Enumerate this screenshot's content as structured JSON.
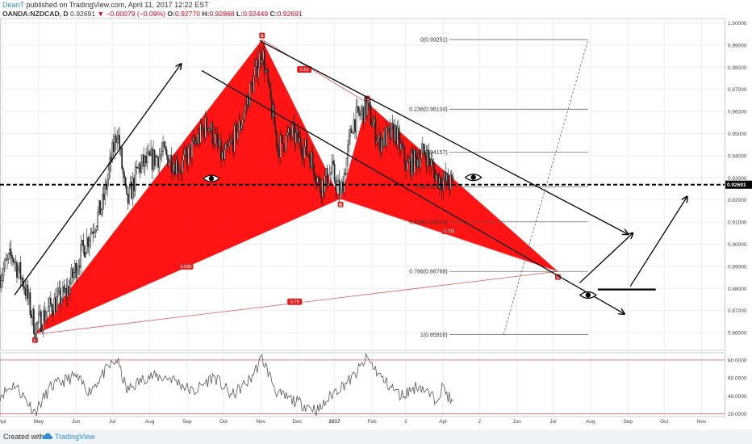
{
  "header": {
    "author": "DeanT",
    "published_text": "published on TradingView.com, April 11, 2017 12:22 EST",
    "symbol": "OANDA:NZDCAD, D",
    "last": "0.92691",
    "change": "−0.00079 (−0.09%)",
    "o_label": "O:",
    "o_value": "0.92770",
    "h_label": "H:",
    "h_value": "0.92868",
    "l_label": "L:",
    "l_value": "0.92449",
    "c_label": "C:",
    "c_value": "0.92691"
  },
  "footer": {
    "created_with": "Created with",
    "brand": "TradingView"
  },
  "colors": {
    "pattern_fill": "#ff0000",
    "candle": "#222222",
    "grid": "#e9eef2",
    "price_tag_bg": "#000000",
    "rsi_line": "#555555",
    "rsi_band": "#e03030"
  },
  "chart_data": {
    "type": "candlestick",
    "symbol": "OANDA:NZDCAD, D",
    "x_ticks": [
      {
        "label": "Apr",
        "day": 0
      },
      {
        "label": "May",
        "day": 30
      },
      {
        "label": "Jun",
        "day": 61
      },
      {
        "label": "Jul",
        "day": 91
      },
      {
        "label": "Aug",
        "day": 122
      },
      {
        "label": "Sep",
        "day": 153
      },
      {
        "label": "Oct",
        "day": 183
      },
      {
        "label": "Nov",
        "day": 214
      },
      {
        "label": "Dec",
        "day": 244
      },
      {
        "label": "2017",
        "day": 275
      },
      {
        "label": "Feb",
        "day": 306
      },
      {
        "label": "2",
        "day": 334
      },
      {
        "label": "Apr",
        "day": 365
      },
      {
        "label": "2",
        "day": 395
      },
      {
        "label": "Jun",
        "day": 426
      },
      {
        "label": "Jul",
        "day": 456
      },
      {
        "label": "Aug",
        "day": 487
      },
      {
        "label": "Sep",
        "day": 518
      },
      {
        "label": "Oct",
        "day": 548
      },
      {
        "label": "Nov",
        "day": 579
      }
    ],
    "y_ticks": [
      "1.00000",
      "0.99000",
      "0.98000",
      "0.97000",
      "0.96000",
      "0.95000",
      "0.94000",
      "0.93000",
      "0.92000",
      "0.91000",
      "0.90000",
      "0.89000",
      "0.88000",
      "0.87000",
      "0.86000"
    ],
    "y_range": [
      0.852,
      1.002
    ],
    "x_range_days": [
      -2,
      598
    ],
    "current_price": "0.92691",
    "price_anchors": [
      {
        "day": -3,
        "price": 0.885
      },
      {
        "day": 8,
        "price": 0.895
      },
      {
        "day": 18,
        "price": 0.882
      },
      {
        "day": 27,
        "price": 0.862
      },
      {
        "day": 40,
        "price": 0.872
      },
      {
        "day": 53,
        "price": 0.878
      },
      {
        "day": 63,
        "price": 0.893
      },
      {
        "day": 83,
        "price": 0.918
      },
      {
        "day": 95,
        "price": 0.952
      },
      {
        "day": 103,
        "price": 0.918
      },
      {
        "day": 113,
        "price": 0.935
      },
      {
        "day": 133,
        "price": 0.941
      },
      {
        "day": 148,
        "price": 0.935
      },
      {
        "day": 170,
        "price": 0.955
      },
      {
        "day": 183,
        "price": 0.938
      },
      {
        "day": 197,
        "price": 0.954
      },
      {
        "day": 215,
        "price": 0.988
      },
      {
        "day": 228,
        "price": 0.944
      },
      {
        "day": 240,
        "price": 0.95
      },
      {
        "day": 255,
        "price": 0.94
      },
      {
        "day": 263,
        "price": 0.926
      },
      {
        "day": 273,
        "price": 0.933
      },
      {
        "day": 280,
        "price": 0.922
      },
      {
        "day": 290,
        "price": 0.955
      },
      {
        "day": 302,
        "price": 0.962
      },
      {
        "day": 312,
        "price": 0.946
      },
      {
        "day": 325,
        "price": 0.951
      },
      {
        "day": 335,
        "price": 0.935
      },
      {
        "day": 350,
        "price": 0.942
      },
      {
        "day": 360,
        "price": 0.93
      },
      {
        "day": 373,
        "price": 0.927
      }
    ],
    "candle_range": [
      -2,
      373
    ],
    "pattern_points": [
      {
        "label": "X",
        "day": 27,
        "price": 0.8592
      },
      {
        "label": "A",
        "day": 215,
        "price": 0.9925
      },
      {
        "label": "B",
        "day": 280,
        "price": 0.9205
      },
      {
        "label": "C",
        "day": 302,
        "price": 0.964
      },
      {
        "label": "D",
        "day": 460,
        "price": 0.8877
      }
    ],
    "pattern_ratios": [
      {
        "value": "0.62",
        "day": 250,
        "price": 0.979
      },
      {
        "value": "0.568",
        "day": 152,
        "price": 0.89
      },
      {
        "value": "1.711",
        "day": 370,
        "price": 0.906
      },
      {
        "value": "0.79",
        "day": 242,
        "price": 0.874
      }
    ],
    "fib_levels": [
      {
        "label": "0(0.99251)",
        "price": 0.99251
      },
      {
        "label": "0.236(0.96104)",
        "price": 0.96104
      },
      {
        "label": "0.382(0.94157)",
        "price": 0.94157
      },
      {
        "label": "0.5(0.92583)",
        "price": 0.92583
      },
      {
        "label": "0.618(0.91010)",
        "price": 0.9101
      },
      {
        "label": "0.786(0.88769)",
        "price": 0.88769
      },
      {
        "label": "1(0.85916)",
        "price": 0.85916
      }
    ],
    "fib_x_days": [
      370,
      485
    ],
    "fib_diagonal": [
      {
        "day": 415,
        "price": 0.8592
      },
      {
        "day": 485,
        "price": 0.9925
      }
    ],
    "trend_lines": [
      {
        "from": {
          "day": 10,
          "price": 0.877
        },
        "to": {
          "day": 148,
          "price": 0.9815
        },
        "arrow": true
      },
      {
        "from": {
          "day": 213,
          "price": 0.992
        },
        "to": {
          "day": 518,
          "price": 0.9045
        },
        "arrow": true
      },
      {
        "from": {
          "day": 165,
          "price": 0.9785
        },
        "to": {
          "day": 515,
          "price": 0.8685
        },
        "arrow": true
      },
      {
        "from": {
          "day": 478,
          "price": 0.8825
        },
        "to": {
          "day": 522,
          "price": 0.905
        },
        "arrow": true
      },
      {
        "from": {
          "day": 520,
          "price": 0.881
        },
        "to": {
          "day": 567,
          "price": 0.9215
        },
        "arrow": true
      }
    ],
    "level_lines": [
      {
        "price": 0.8795,
        "from_day": 493,
        "to_day": 541
      }
    ],
    "eye_markers": [
      {
        "day": 390,
        "price": 0.9302
      },
      {
        "day": 173,
        "price": 0.9297
      },
      {
        "day": 485,
        "price": 0.877
      }
    ],
    "eye_markers_note": "",
    "rsi": {
      "y_ticks": [
        "80.0000",
        "60.0000",
        "40.0000",
        "20.0000"
      ],
      "y_range": [
        17,
        88
      ],
      "overbought": 80,
      "oversold": 20,
      "anchors": [
        {
          "day": -2,
          "value": 41
        },
        {
          "day": 10,
          "value": 53
        },
        {
          "day": 20,
          "value": 35
        },
        {
          "day": 27,
          "value": 22
        },
        {
          "day": 40,
          "value": 50
        },
        {
          "day": 60,
          "value": 62
        },
        {
          "day": 72,
          "value": 45
        },
        {
          "day": 88,
          "value": 72
        },
        {
          "day": 95,
          "value": 80
        },
        {
          "day": 103,
          "value": 46
        },
        {
          "day": 120,
          "value": 62
        },
        {
          "day": 140,
          "value": 60
        },
        {
          "day": 158,
          "value": 44
        },
        {
          "day": 175,
          "value": 62
        },
        {
          "day": 190,
          "value": 40
        },
        {
          "day": 205,
          "value": 58
        },
        {
          "day": 215,
          "value": 82
        },
        {
          "day": 228,
          "value": 42
        },
        {
          "day": 250,
          "value": 30
        },
        {
          "day": 262,
          "value": 24
        },
        {
          "day": 275,
          "value": 45
        },
        {
          "day": 290,
          "value": 60
        },
        {
          "day": 302,
          "value": 82
        },
        {
          "day": 315,
          "value": 58
        },
        {
          "day": 330,
          "value": 40
        },
        {
          "day": 345,
          "value": 52
        },
        {
          "day": 358,
          "value": 36
        },
        {
          "day": 365,
          "value": 50
        },
        {
          "day": 373,
          "value": 30
        }
      ]
    }
  }
}
